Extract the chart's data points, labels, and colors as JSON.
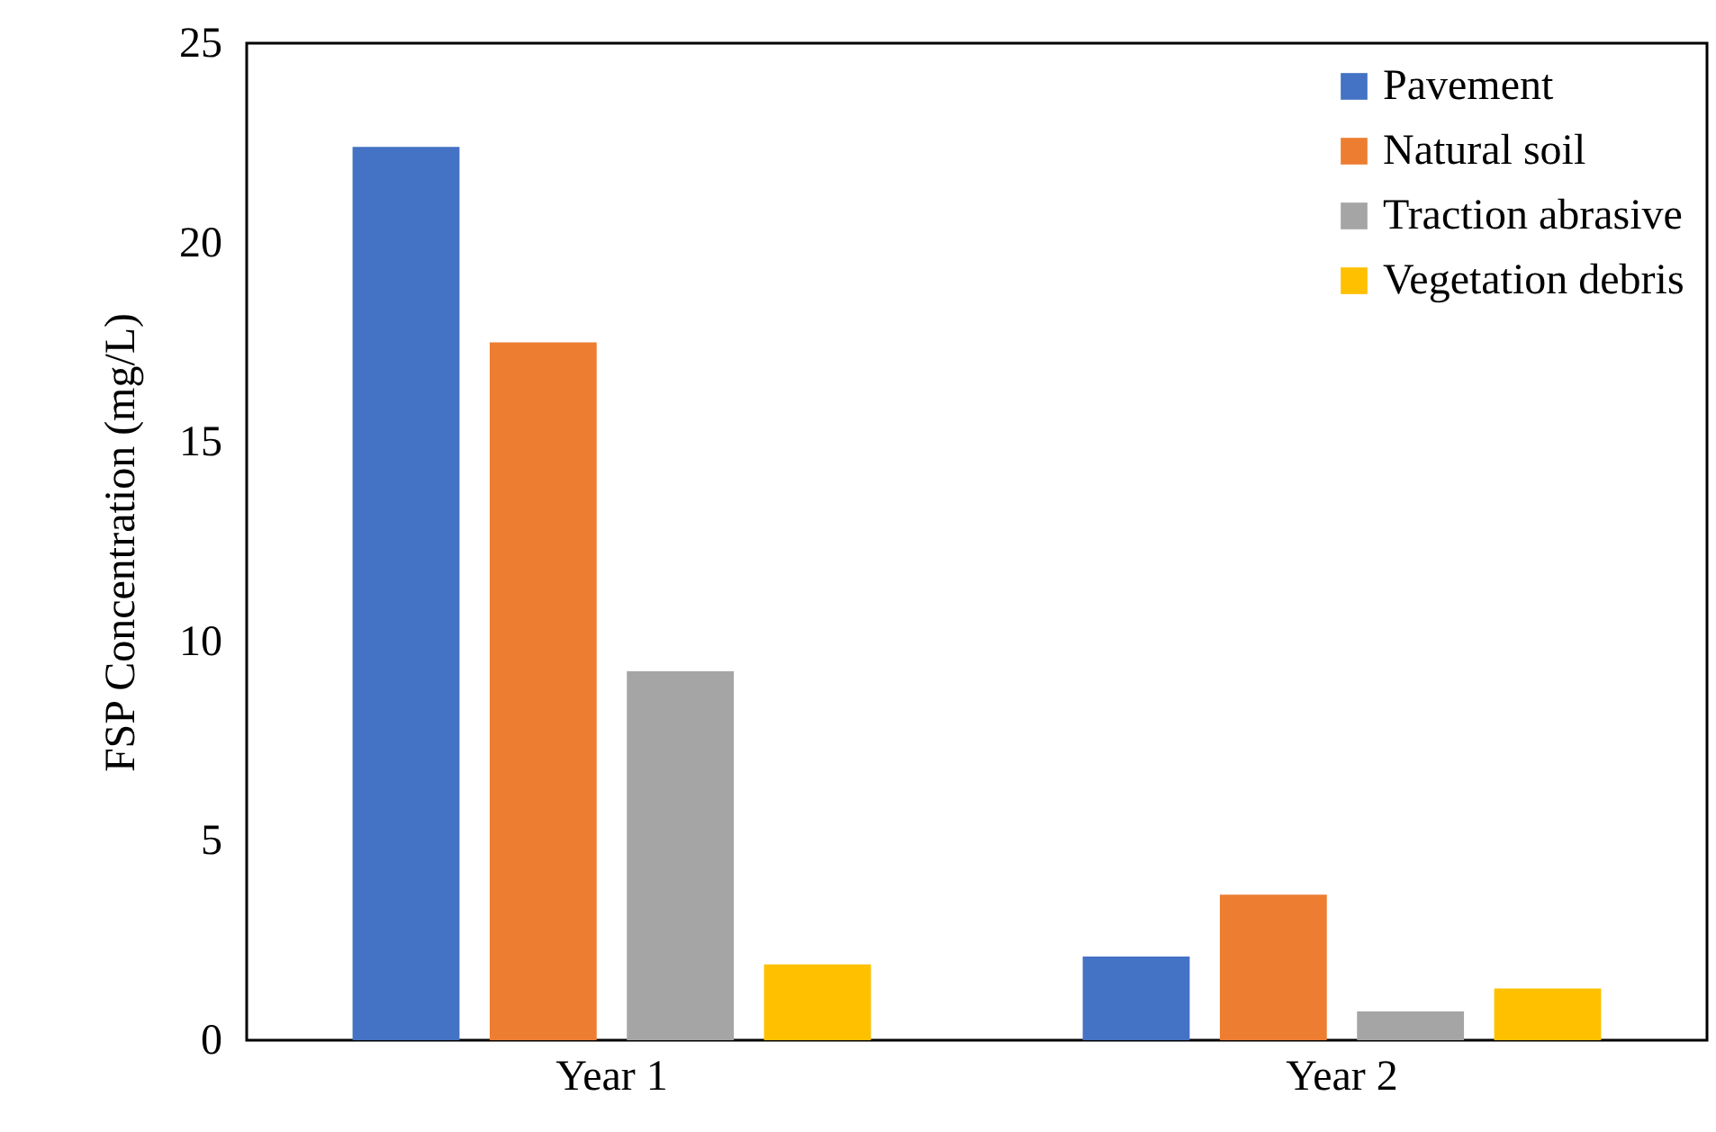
{
  "chart_data": {
    "type": "bar",
    "ylabel": "FSP Concentration (mg/L)",
    "categories": [
      "Year 1",
      "Year 2"
    ],
    "series": [
      {
        "name": "Pavement",
        "color": "#4472c4",
        "values": [
          22.4,
          2.1
        ]
      },
      {
        "name": "Natural soil",
        "color": "#ed7d31",
        "values": [
          17.5,
          3.65
        ]
      },
      {
        "name": "Traction abrasive",
        "color": "#a5a5a5",
        "values": [
          9.25,
          0.72
        ]
      },
      {
        "name": "Vegetation debris",
        "color": "#ffc000",
        "values": [
          1.9,
          1.3
        ]
      }
    ],
    "ylim": [
      0,
      25
    ],
    "yticks": [
      0,
      5,
      10,
      15,
      20,
      25
    ],
    "legend": "top right",
    "grid": false
  }
}
